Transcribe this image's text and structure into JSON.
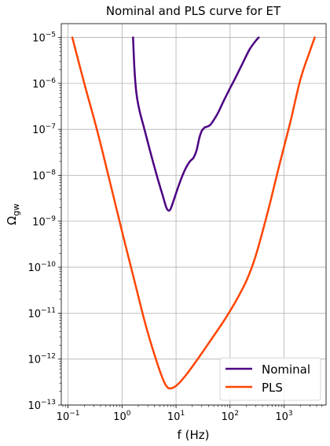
{
  "chart_data": {
    "type": "line",
    "title": "Nominal and PLS curve for ET",
    "xlabel": "f (Hz)",
    "ylabel": "Ω_gw",
    "xscale": "log",
    "yscale": "log",
    "xlim": [
      0.075,
      6000
    ],
    "ylim": [
      1e-13,
      2e-05
    ],
    "grid": true,
    "legend_position": "lower-right",
    "x_ticks": [
      {
        "base": "10",
        "exp": "−1",
        "value": 0.1
      },
      {
        "base": "10",
        "exp": "0",
        "value": 1
      },
      {
        "base": "10",
        "exp": "1",
        "value": 10
      },
      {
        "base": "10",
        "exp": "2",
        "value": 100
      },
      {
        "base": "10",
        "exp": "3",
        "value": 1000
      }
    ],
    "y_ticks": [
      {
        "base": "10",
        "exp": "−13",
        "value": 1e-13
      },
      {
        "base": "10",
        "exp": "−12",
        "value": 1e-12
      },
      {
        "base": "10",
        "exp": "−11",
        "value": 1e-11
      },
      {
        "base": "10",
        "exp": "−10",
        "value": 1e-10
      },
      {
        "base": "10",
        "exp": "−9",
        "value": 1e-09
      },
      {
        "base": "10",
        "exp": "−8",
        "value": 1e-08
      },
      {
        "base": "10",
        "exp": "−7",
        "value": 1e-07
      },
      {
        "base": "10",
        "exp": "−6",
        "value": 1e-06
      },
      {
        "base": "10",
        "exp": "−5",
        "value": 1e-05
      }
    ],
    "series": [
      {
        "name": "Nominal",
        "color": "#4b0082",
        "x": [
          1.6,
          1.7,
          1.85,
          2.1,
          2.6,
          3.4,
          4.5,
          5.6,
          6.6,
          7.3,
          8.0,
          9.0,
          10.5,
          12.5,
          15.0,
          18.0,
          21.0,
          24.0,
          27.0,
          30.0,
          34.0,
          38.0,
          43.0,
          50.0,
          60.0,
          75.0,
          95.0,
          125.0,
          170.0,
          230.0,
          300.0,
          340.0
        ],
        "y": [
          1e-05,
          2e-06,
          6e-07,
          2.6e-07,
          1e-07,
          3e-08,
          9e-09,
          3.8e-09,
          2e-09,
          1.7e-09,
          1.9e-09,
          2.8e-09,
          4.8e-09,
          8.5e-09,
          1.4e-08,
          2e-08,
          2.4e-08,
          3.5e-08,
          6.5e-08,
          9.3e-08,
          1.1e-07,
          1.15e-07,
          1.25e-07,
          1.6e-07,
          2.3e-07,
          4e-07,
          7e-07,
          1.3e-06,
          2.7e-06,
          5.5e-06,
          8.5e-06,
          1e-05
        ]
      },
      {
        "name": "PLS",
        "color": "#ff4500",
        "x": [
          0.12,
          0.2,
          0.35,
          0.6,
          1.0,
          1.7,
          2.8,
          4.5,
          6.0,
          7.0,
          8.0,
          9.5,
          12.0,
          16.0,
          22.0,
          32.0,
          48.0,
          75.0,
          120.0,
          200.0,
          300.0,
          500.0,
          800.0,
          1300.0,
          2000.0,
          3000.0,
          3700.0
        ],
        "y": [
          1e-05,
          1e-06,
          9e-08,
          7e-09,
          6e-10,
          5e-11,
          5e-12,
          8e-13,
          3.2e-13,
          2.4e-13,
          2.3e-13,
          2.5e-13,
          3.2e-13,
          4.8e-13,
          8e-13,
          1.5e-12,
          3e-12,
          6.5e-12,
          1.6e-11,
          5e-11,
          1.8e-10,
          1.6e-09,
          1.5e-08,
          1.4e-07,
          1.2e-06,
          5e-06,
          1e-05
        ]
      }
    ]
  }
}
